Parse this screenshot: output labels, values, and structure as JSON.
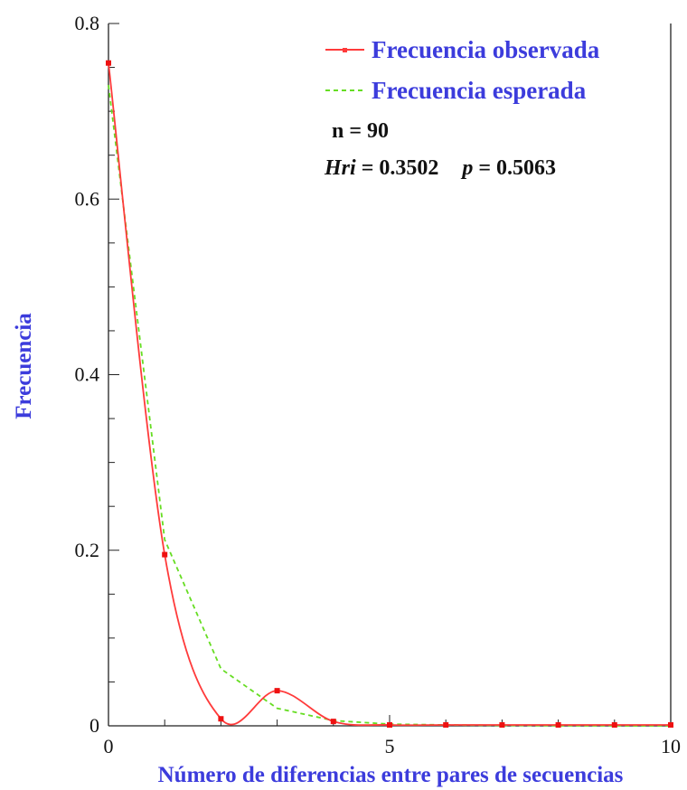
{
  "chart_data": {
    "type": "line",
    "xlabel": "Número de diferencias entre pares de secuencias",
    "ylabel": "Frecuencia",
    "xlim": [
      0,
      10
    ],
    "ylim": [
      0,
      0.8
    ],
    "x_ticks": [
      "0",
      "5",
      "10"
    ],
    "y_ticks": [
      "0",
      "0.2",
      "0.4",
      "0.6",
      "0.8"
    ],
    "legend_position": "top-right",
    "x": [
      0,
      1,
      2,
      3,
      4,
      5,
      6,
      7,
      8,
      9,
      10
    ],
    "series": [
      {
        "name": "Frecuencia observada",
        "color": "#ff3b3b",
        "style": "solid-smooth-markers",
        "values": [
          0.755,
          0.195,
          0.008,
          0.04,
          0.005,
          0.001,
          0.001,
          0.001,
          0.001,
          0.001,
          0.001
        ]
      },
      {
        "name": "Frecuencia esperada",
        "color": "#66dd22",
        "style": "dashed",
        "values": [
          0.73,
          0.212,
          0.065,
          0.02,
          0.006,
          0.002,
          0.001,
          0.0005,
          0.0002,
          0.0001,
          0.0
        ]
      }
    ],
    "annotations": {
      "n_label": "n = 90",
      "hri_label": "Hri",
      "hri_value": " = 0.3502",
      "p_label": "p",
      "p_value": " = 0.5063"
    },
    "colors": {
      "axis_title": "#3c3cdc",
      "legend_text": "#3c3cdc",
      "axis": "#222222"
    }
  }
}
